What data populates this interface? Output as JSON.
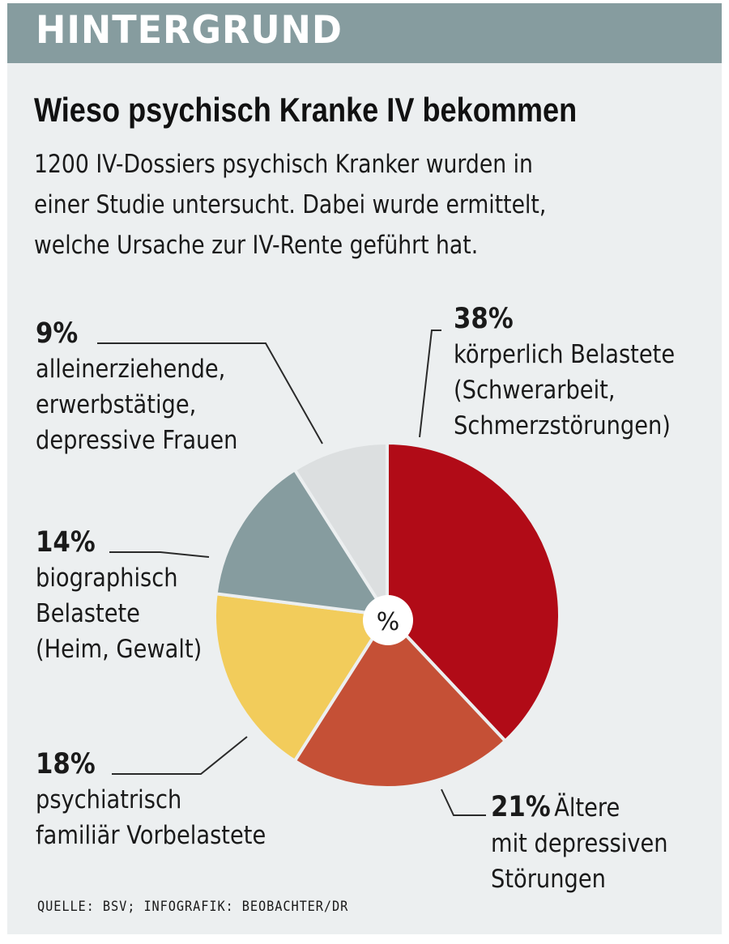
{
  "header": {
    "label": "HINTERGRUND"
  },
  "title": "Wieso psychisch Kranke IV bekommen",
  "subtitle_lines": [
    "1200 IV-Dossiers psychisch Kranker wurden in",
    "einer Studie untersucht. Dabei wurde ermittelt,",
    "welche Ursache zur IV-Rente geführt hat."
  ],
  "chart_data": {
    "type": "pie",
    "title": "Wieso psychisch Kranke IV bekommen",
    "center_label": "%",
    "unit": "%",
    "slices": [
      {
        "value": 38,
        "pct_label": "38%",
        "label_lines": [
          "körperlich Belastete",
          "(Schwerarbeit,",
          "Schmerzstörungen)"
        ],
        "color": "#b10b17"
      },
      {
        "value": 21,
        "pct_label": "21%",
        "label_lines": [
          "Ältere",
          "mit depressiven",
          "Störungen"
        ],
        "color": "#c55036"
      },
      {
        "value": 18,
        "pct_label": "18%",
        "label_lines": [
          "psychiatrisch",
          "familiär Vorbelastete"
        ],
        "color": "#f2cc5b"
      },
      {
        "value": 14,
        "pct_label": "14%",
        "label_lines": [
          "biographisch",
          "Belastete",
          "(Heim, Gewalt)"
        ],
        "color": "#869c9f"
      },
      {
        "value": 9,
        "pct_label": "9%",
        "label_lines": [
          "alleinerziehende,",
          "erwerbstätige,",
          "depressive Frauen"
        ],
        "color": "#dcdfe0"
      }
    ]
  },
  "source": "QUELLE: BSV; INFOGRAFIK: BEOBACHTER/DR",
  "colors": {
    "header_bg": "#869c9f",
    "panel_bg": "#eceff0"
  }
}
